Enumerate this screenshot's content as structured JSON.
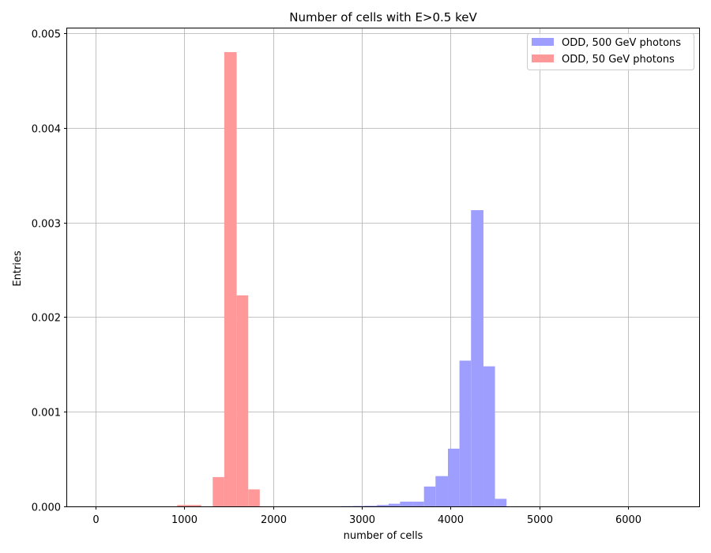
{
  "chart_data": {
    "type": "bar",
    "title": "Number of cells with E>0.5 keV",
    "xlabel": "number of cells",
    "ylabel": "Entries",
    "xlim": [
      -320,
      6800
    ],
    "ylim": [
      0,
      0.00505
    ],
    "xticks": [
      0,
      1000,
      2000,
      3000,
      4000,
      5000,
      6000
    ],
    "xtick_labels": [
      "0",
      "1000",
      "2000",
      "3000",
      "4000",
      "5000",
      "6000"
    ],
    "yticks": [
      0,
      0.001,
      0.002,
      0.003,
      0.004,
      0.005
    ],
    "ytick_labels": [
      "0.000",
      "0.001",
      "0.002",
      "0.003",
      "0.004",
      "0.005"
    ],
    "grid": true,
    "legend_position": "top-right",
    "series": [
      {
        "name": "ODD, 500 GeV photons",
        "color": "#9e9eff",
        "bins": [
          {
            "x0": 2770,
            "x1": 2900,
            "value": 3e-06
          },
          {
            "x0": 2900,
            "x1": 3030,
            "value": 5e-06
          },
          {
            "x0": 3030,
            "x1": 3170,
            "value": 7e-06
          },
          {
            "x0": 3170,
            "x1": 3300,
            "value": 1.5e-05
          },
          {
            "x0": 3300,
            "x1": 3430,
            "value": 2.8e-05
          },
          {
            "x0": 3430,
            "x1": 3570,
            "value": 5e-05
          },
          {
            "x0": 3570,
            "x1": 3700,
            "value": 5e-05
          },
          {
            "x0": 3700,
            "x1": 3830,
            "value": 0.00021
          },
          {
            "x0": 3830,
            "x1": 3970,
            "value": 0.00032
          },
          {
            "x0": 3970,
            "x1": 4100,
            "value": 0.00061
          },
          {
            "x0": 4100,
            "x1": 4230,
            "value": 0.00154
          },
          {
            "x0": 4230,
            "x1": 4370,
            "value": 0.00313
          },
          {
            "x0": 4370,
            "x1": 4500,
            "value": 0.00148
          },
          {
            "x0": 4500,
            "x1": 4630,
            "value": 8e-05
          }
        ]
      },
      {
        "name": "ODD, 50 GeV photons",
        "color": "#ff9999",
        "bins": [
          {
            "x0": 920,
            "x1": 1060,
            "value": 1.5e-05
          },
          {
            "x0": 1060,
            "x1": 1190,
            "value": 1.5e-05
          },
          {
            "x0": 1320,
            "x1": 1450,
            "value": 0.00031
          },
          {
            "x0": 1450,
            "x1": 1590,
            "value": 0.0048
          },
          {
            "x0": 1590,
            "x1": 1720,
            "value": 0.00223
          },
          {
            "x0": 1720,
            "x1": 1850,
            "value": 0.00018
          }
        ]
      }
    ]
  }
}
